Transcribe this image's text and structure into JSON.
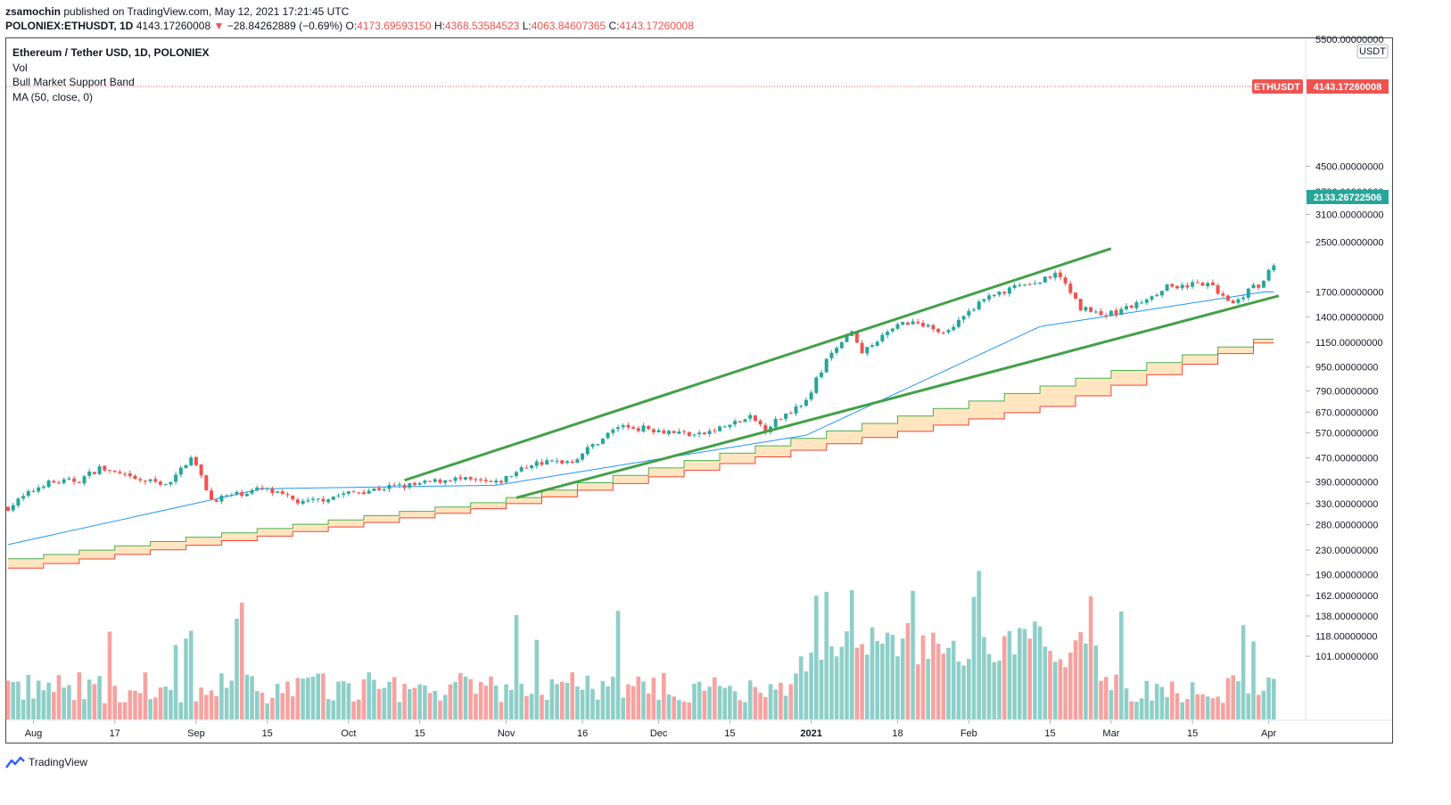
{
  "header": {
    "author": "zsamochin",
    "published": "published on TradingView.com, May 12, 2021 17:21:45 UTC",
    "symbol": "POLONIEX:ETHUSDT, 1D",
    "last": "4143.17260008",
    "arrow": "▼",
    "change": "−28.84262889 (−0.69%)",
    "open_label": "O:",
    "open": "4173.69593150",
    "high_label": "H:",
    "high": "4368.53584523",
    "low_label": "L:",
    "low": "4063.84607365",
    "close_label": "C:",
    "close": "4143.17260008"
  },
  "legend": {
    "title": "Ethereum / Tether USD, 1D, POLONIEX",
    "items": [
      "Vol",
      "Bull Market Support Band",
      "MA (50, close, 0)"
    ]
  },
  "price_scale": {
    "unit": "USDT",
    "top_label": "5500.00000000",
    "last_tag_symbol": "ETHUSDT",
    "last_tag_value": "4143.17260008",
    "cursor_tag_value": "2133.26722506"
  },
  "footer": {
    "brand": "TradingView"
  },
  "colors": {
    "up": "#26a69a",
    "down": "#ef5350",
    "vol_up": "#8ecfc8",
    "vol_down": "#f5a3a1",
    "ma": "#2196f3",
    "band_upper": "#4caf50",
    "band_lower": "#f44336",
    "band_fill": "#ffe0b2",
    "trendline": "#43a047"
  },
  "chart_data": {
    "type": "candlestick",
    "title": "Ethereum / Tether USD, 1D, POLONIEX",
    "y_scale": "log",
    "y_ticks": [
      101,
      118,
      138,
      162,
      190,
      230,
      280,
      330,
      390,
      470,
      570,
      670,
      790,
      950,
      1150,
      1400,
      1700,
      2500,
      3100,
      3700,
      4500
    ],
    "x_ticks": [
      "Aug",
      "17",
      "Sep",
      "15",
      "Oct",
      "15",
      "Nov",
      "16",
      "Dec",
      "15",
      "2021",
      "18",
      "Feb",
      "15",
      "Mar",
      "15",
      "Apr"
    ],
    "last_price": 4143.17260008,
    "series": [
      {
        "name": "ETHUSDT",
        "points_approx": [
          [
            "2020-07-27",
            320
          ],
          [
            "2020-08-03",
            385
          ],
          [
            "2020-08-10",
            395
          ],
          [
            "2020-08-14",
            435
          ],
          [
            "2020-08-21",
            395
          ],
          [
            "2020-08-28",
            385
          ],
          [
            "2020-09-01",
            480
          ],
          [
            "2020-09-05",
            340
          ],
          [
            "2020-09-15",
            370
          ],
          [
            "2020-09-23",
            330
          ],
          [
            "2020-10-01",
            355
          ],
          [
            "2020-10-10",
            375
          ],
          [
            "2020-10-15",
            380
          ],
          [
            "2020-10-22",
            400
          ],
          [
            "2020-10-31",
            385
          ],
          [
            "2020-11-07",
            450
          ],
          [
            "2020-11-15",
            460
          ],
          [
            "2020-11-24",
            600
          ],
          [
            "2020-11-30",
            590
          ],
          [
            "2020-12-10",
            560
          ],
          [
            "2020-12-20",
            640
          ],
          [
            "2020-12-23",
            590
          ],
          [
            "2020-12-31",
            740
          ],
          [
            "2021-01-04",
            1000
          ],
          [
            "2021-01-09",
            1240
          ],
          [
            "2021-01-11",
            1050
          ],
          [
            "2021-01-19",
            1350
          ],
          [
            "2021-01-27",
            1250
          ],
          [
            "2021-02-04",
            1600
          ],
          [
            "2021-02-10",
            1750
          ],
          [
            "2021-02-19",
            1950
          ],
          [
            "2021-02-23",
            1500
          ],
          [
            "2021-02-28",
            1420
          ],
          [
            "2021-03-05",
            1520
          ],
          [
            "2021-03-12",
            1780
          ],
          [
            "2021-03-20",
            1800
          ],
          [
            "2021-03-25",
            1580
          ],
          [
            "2021-03-31",
            1850
          ],
          [
            "2021-04-02",
            2133
          ]
        ]
      },
      {
        "name": "MA (50, close, 0)",
        "approx": [
          [
            "2020-07-27",
            240
          ],
          [
            "2020-09-15",
            370
          ],
          [
            "2020-10-31",
            380
          ],
          [
            "2020-12-31",
            560
          ],
          [
            "2021-02-15",
            1300
          ],
          [
            "2021-03-31",
            1700
          ]
        ]
      },
      {
        "name": "Bull Market Support Band",
        "upper_approx": [
          [
            "2020-07-27",
            215
          ],
          [
            "2020-10-31",
            340
          ],
          [
            "2020-12-31",
            560
          ],
          [
            "2021-02-15",
            820
          ],
          [
            "2021-04-02",
            1220
          ]
        ],
        "lower_approx": [
          [
            "2020-07-27",
            200
          ],
          [
            "2020-10-31",
            325
          ],
          [
            "2020-12-31",
            510
          ],
          [
            "2021-02-15",
            700
          ],
          [
            "2021-04-02",
            1200
          ]
        ]
      }
    ]
  }
}
